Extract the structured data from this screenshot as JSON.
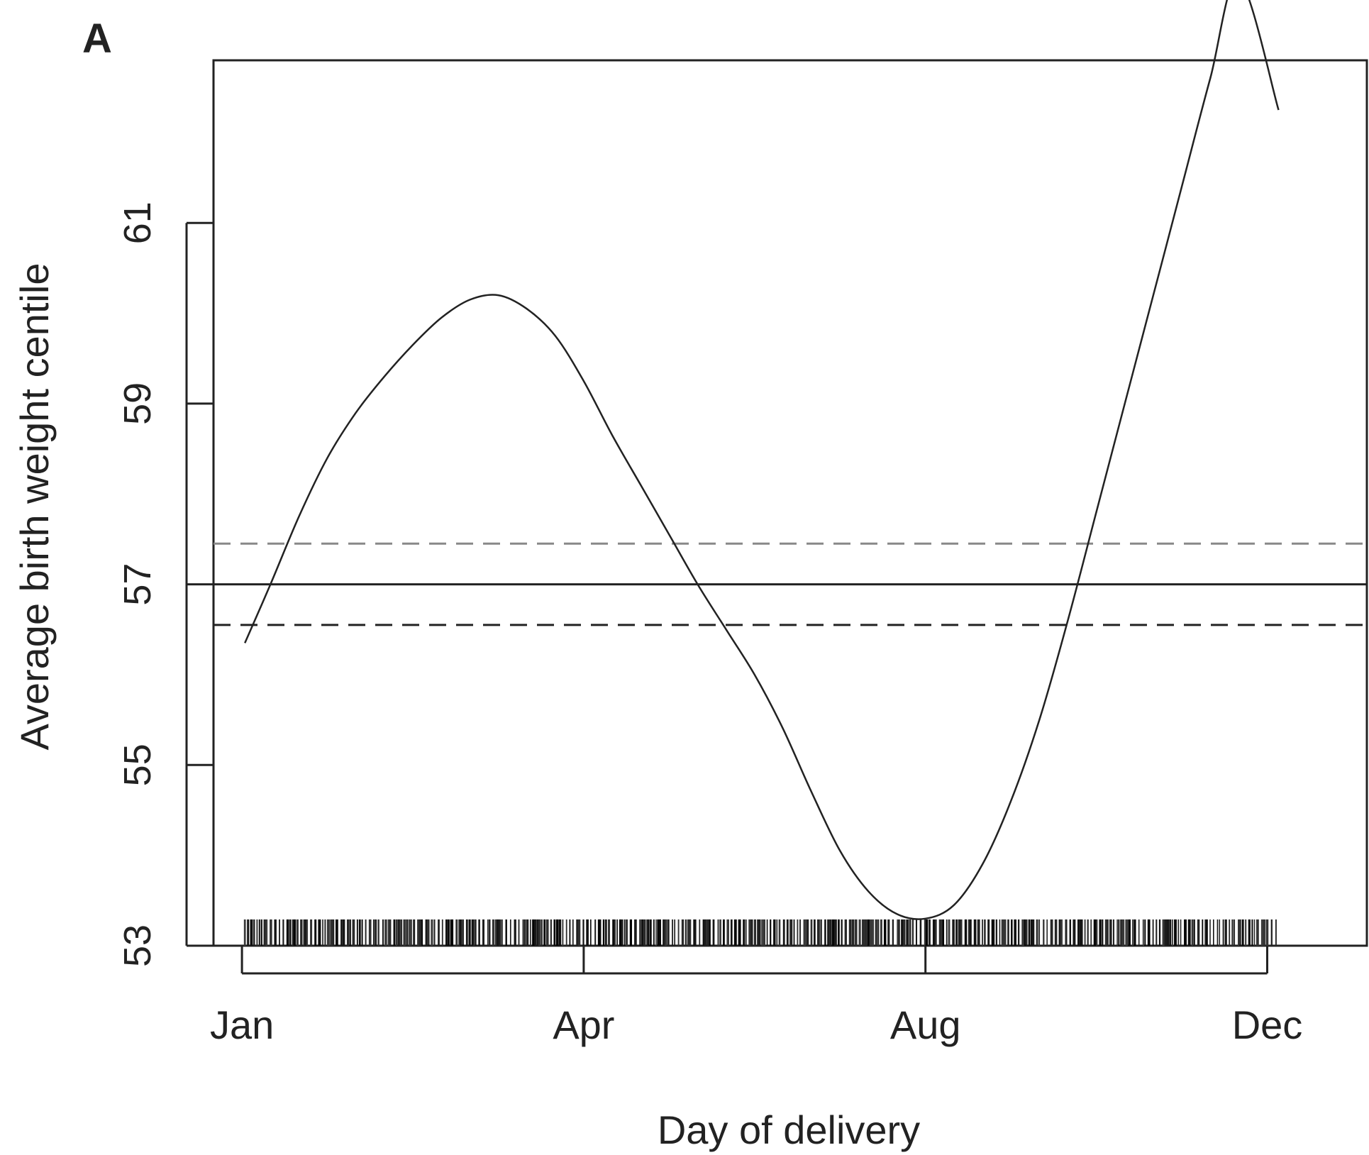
{
  "panel_label": "A",
  "chart_data": {
    "type": "line",
    "xlabel": "Day of delivery",
    "ylabel": "Average birth weight centile",
    "xlim": [
      -10,
      395
    ],
    "ylim": [
      53,
      62.8
    ],
    "x_ticks": [
      {
        "label": "Jan",
        "value": 0
      },
      {
        "label": "Apr",
        "value": 120
      },
      {
        "label": "Aug",
        "value": 240
      },
      {
        "label": "Dec",
        "value": 360
      }
    ],
    "y_ticks": [
      53,
      55,
      57,
      59,
      61
    ],
    "grid": false,
    "series": [
      {
        "style": "solid",
        "color": "#222222",
        "x": [
          1,
          10,
          20,
          30,
          40,
          50,
          60,
          70,
          80,
          90,
          100,
          110,
          120,
          130,
          140,
          150,
          160,
          170,
          180,
          190,
          200,
          210,
          220,
          230,
          240,
          250,
          260,
          270,
          280,
          290,
          300,
          310,
          320,
          330,
          340,
          350,
          364
        ],
        "y": [
          56.35,
          57.0,
          57.75,
          58.4,
          58.9,
          59.3,
          59.65,
          59.95,
          60.15,
          60.2,
          60.05,
          59.75,
          59.25,
          58.65,
          58.1,
          57.55,
          57.0,
          56.5,
          56.0,
          55.4,
          54.7,
          54.05,
          53.6,
          53.35,
          53.3,
          53.45,
          53.9,
          54.6,
          55.5,
          56.6,
          57.8,
          59.0,
          60.2,
          61.4,
          62.6,
          63.7,
          62.25
        ]
      }
    ],
    "reference_lines": [
      {
        "y": 57.0,
        "style": "solid",
        "color": "#222222"
      },
      {
        "y": 57.45,
        "style": "dashed",
        "color": "#888888"
      },
      {
        "y": 56.55,
        "style": "dashed",
        "color": "#222222"
      }
    ],
    "rug": {
      "x_range": [
        1,
        364
      ],
      "description_style": "dense tick marks"
    }
  }
}
